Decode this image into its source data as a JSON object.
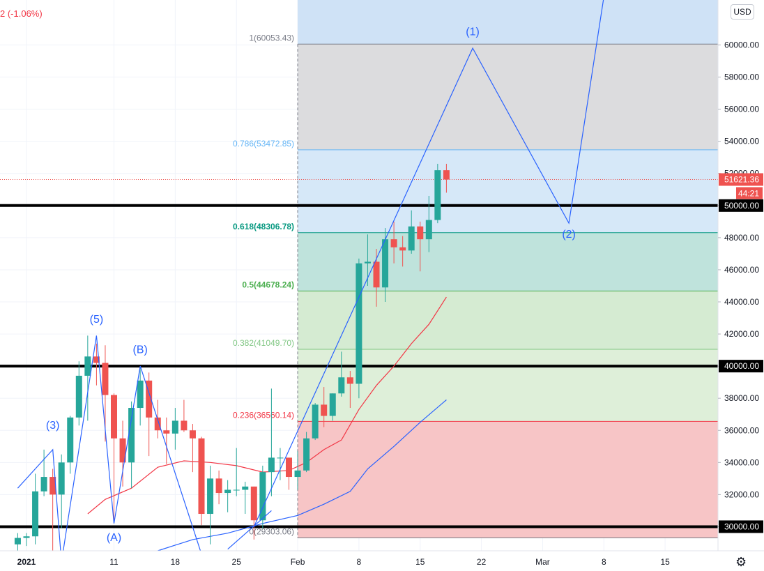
{
  "header": {
    "change_text": "2 (-1.06%)",
    "currency_label": "USD"
  },
  "colors": {
    "up": "#26a69a",
    "down": "#ef5350",
    "wave": "#2962ff",
    "ma_fast": "#f23645",
    "ma_slow": "#2962ff"
  },
  "icons": {
    "settings": "gear-icon"
  },
  "chart_data": {
    "type": "candlestick",
    "title": "",
    "ylim": [
      28500,
      62800
    ],
    "y_ticks": [
      "30000.00",
      "32000.00",
      "34000.00",
      "36000.00",
      "38000.00",
      "40000.00",
      "42000.00",
      "44000.00",
      "46000.00",
      "48000.00",
      "50000.00",
      "52000.00",
      "54000.00",
      "56000.00",
      "58000.00",
      "60000.00"
    ],
    "x_ticks": [
      {
        "label": "2021",
        "date": "2021-01-01"
      },
      {
        "label": "11",
        "date": "2021-01-11"
      },
      {
        "label": "18",
        "date": "2021-01-18"
      },
      {
        "label": "25",
        "date": "2021-01-25"
      },
      {
        "label": "Feb",
        "date": "2021-02-01"
      },
      {
        "label": "8",
        "date": "2021-02-08"
      },
      {
        "label": "15",
        "date": "2021-02-15"
      },
      {
        "label": "22",
        "date": "2021-02-22"
      },
      {
        "label": "Mar",
        "date": "2021-03-01"
      },
      {
        "label": "8",
        "date": "2021-03-08"
      },
      {
        "label": "15",
        "date": "2021-03-15"
      }
    ],
    "candles": [
      {
        "date": "2020-12-31",
        "open": 28900,
        "high": 29600,
        "low": 28200,
        "close": 29300
      },
      {
        "date": "2021-01-01",
        "open": 29300,
        "high": 29600,
        "low": 28800,
        "close": 29400
      },
      {
        "date": "2021-01-02",
        "open": 29400,
        "high": 33300,
        "low": 28900,
        "close": 32200
      },
      {
        "date": "2021-01-03",
        "open": 32200,
        "high": 34800,
        "low": 31900,
        "close": 33100
      },
      {
        "date": "2021-01-04",
        "open": 33100,
        "high": 33600,
        "low": 27700,
        "close": 32000
      },
      {
        "date": "2021-01-05",
        "open": 32000,
        "high": 34500,
        "low": 29900,
        "close": 34000
      },
      {
        "date": "2021-01-06",
        "open": 34000,
        "high": 36900,
        "low": 33300,
        "close": 36800
      },
      {
        "date": "2021-01-07",
        "open": 36800,
        "high": 40300,
        "low": 36300,
        "close": 39400
      },
      {
        "date": "2021-01-08",
        "open": 39400,
        "high": 41900,
        "low": 36600,
        "close": 40600
      },
      {
        "date": "2021-01-09",
        "open": 40600,
        "high": 41400,
        "low": 38800,
        "close": 40200
      },
      {
        "date": "2021-01-10",
        "open": 40200,
        "high": 41300,
        "low": 35300,
        "close": 38200
      },
      {
        "date": "2021-01-11",
        "open": 38200,
        "high": 38300,
        "low": 30400,
        "close": 35500
      },
      {
        "date": "2021-01-12",
        "open": 35500,
        "high": 36600,
        "low": 32500,
        "close": 34000
      },
      {
        "date": "2021-01-13",
        "open": 34000,
        "high": 37800,
        "low": 32400,
        "close": 37400
      },
      {
        "date": "2021-01-14",
        "open": 37400,
        "high": 40000,
        "low": 36300,
        "close": 39100
      },
      {
        "date": "2021-01-15",
        "open": 39100,
        "high": 39600,
        "low": 34400,
        "close": 36800
      },
      {
        "date": "2021-01-16",
        "open": 36800,
        "high": 37900,
        "low": 35500,
        "close": 36000
      },
      {
        "date": "2021-01-17",
        "open": 36000,
        "high": 36800,
        "low": 33900,
        "close": 35800
      },
      {
        "date": "2021-01-18",
        "open": 35800,
        "high": 37400,
        "low": 34800,
        "close": 36600
      },
      {
        "date": "2021-01-19",
        "open": 36600,
        "high": 37900,
        "low": 35900,
        "close": 36000
      },
      {
        "date": "2021-01-20",
        "open": 36000,
        "high": 36400,
        "low": 33400,
        "close": 35500
      },
      {
        "date": "2021-01-21",
        "open": 35500,
        "high": 35600,
        "low": 30100,
        "close": 30800
      },
      {
        "date": "2021-01-22",
        "open": 30800,
        "high": 33800,
        "low": 28900,
        "close": 33000
      },
      {
        "date": "2021-01-23",
        "open": 33000,
        "high": 33500,
        "low": 31400,
        "close": 32100
      },
      {
        "date": "2021-01-24",
        "open": 32100,
        "high": 32900,
        "low": 30900,
        "close": 32300
      },
      {
        "date": "2021-01-25",
        "open": 32300,
        "high": 34900,
        "low": 31900,
        "close": 32300
      },
      {
        "date": "2021-01-26",
        "open": 32300,
        "high": 32800,
        "low": 30800,
        "close": 32500
      },
      {
        "date": "2021-01-27",
        "open": 32500,
        "high": 32500,
        "low": 29200,
        "close": 30400
      },
      {
        "date": "2021-01-28",
        "open": 30400,
        "high": 33800,
        "low": 29900,
        "close": 33400
      },
      {
        "date": "2021-01-29",
        "open": 33400,
        "high": 38600,
        "low": 31900,
        "close": 34300
      },
      {
        "date": "2021-01-30",
        "open": 34300,
        "high": 34900,
        "low": 32900,
        "close": 34300
      },
      {
        "date": "2021-01-31",
        "open": 34300,
        "high": 34300,
        "low": 32300,
        "close": 33100
      },
      {
        "date": "2021-02-01",
        "open": 33100,
        "high": 34700,
        "low": 32300,
        "close": 33500
      },
      {
        "date": "2021-02-02",
        "open": 33500,
        "high": 35900,
        "low": 33400,
        "close": 35500
      },
      {
        "date": "2021-02-03",
        "open": 35500,
        "high": 37700,
        "low": 35400,
        "close": 37600
      },
      {
        "date": "2021-02-04",
        "open": 37600,
        "high": 38700,
        "low": 36200,
        "close": 36900
      },
      {
        "date": "2021-02-05",
        "open": 36900,
        "high": 38300,
        "low": 36600,
        "close": 38300
      },
      {
        "date": "2021-02-06",
        "open": 38300,
        "high": 40900,
        "low": 38100,
        "close": 39300
      },
      {
        "date": "2021-02-07",
        "open": 39300,
        "high": 39700,
        "low": 37400,
        "close": 38900
      },
      {
        "date": "2021-02-08",
        "open": 38900,
        "high": 46700,
        "low": 38000,
        "close": 46400
      },
      {
        "date": "2021-02-09",
        "open": 46400,
        "high": 48200,
        "low": 45000,
        "close": 46500
      },
      {
        "date": "2021-02-10",
        "open": 46500,
        "high": 47300,
        "low": 43700,
        "close": 44900
      },
      {
        "date": "2021-02-11",
        "open": 44900,
        "high": 48600,
        "low": 44000,
        "close": 47900
      },
      {
        "date": "2021-02-12",
        "open": 47900,
        "high": 49000,
        "low": 46400,
        "close": 47400
      },
      {
        "date": "2021-02-13",
        "open": 47400,
        "high": 48100,
        "low": 46200,
        "close": 47200
      },
      {
        "date": "2021-02-14",
        "open": 47200,
        "high": 49700,
        "low": 47000,
        "close": 48700
      },
      {
        "date": "2021-02-15",
        "open": 48700,
        "high": 49000,
        "low": 45900,
        "close": 47900
      },
      {
        "date": "2021-02-16",
        "open": 47900,
        "high": 50600,
        "low": 47100,
        "close": 49100
      },
      {
        "date": "2021-02-17",
        "open": 49100,
        "high": 52600,
        "low": 48900,
        "close": 52200
      },
      {
        "date": "2021-02-18",
        "open": 52200,
        "high": 52600,
        "low": 50800,
        "close": 51621
      }
    ],
    "last_price_label": "51621.36",
    "last_price": 51621.36,
    "countdown_label": "44:21",
    "horizontal_lines": [
      30000,
      40000,
      50000
    ],
    "horizontal_line_labels": [
      "30000.00",
      "40000.00",
      "50000.00"
    ],
    "fib": {
      "start_date": "2021-02-01",
      "levels": [
        {
          "ratio": 0,
          "price": 29303.06,
          "label": "0(29303.06)",
          "color": "#787b86"
        },
        {
          "ratio": 0.236,
          "price": 36560.14,
          "label": "0.236(36560.14)",
          "color": "#f23645"
        },
        {
          "ratio": 0.382,
          "price": 41049.7,
          "label": "0.382(41049.70)",
          "color": "#81c784"
        },
        {
          "ratio": 0.5,
          "price": 44678.24,
          "label": "0.5(44678.24)",
          "color": "#4caf50"
        },
        {
          "ratio": 0.618,
          "price": 48306.78,
          "label": "0.618(48306.78)",
          "color": "#089981"
        },
        {
          "ratio": 0.786,
          "price": 53472.85,
          "label": "0.786(53472.85)",
          "color": "#64b5f6"
        },
        {
          "ratio": 1,
          "price": 60053.43,
          "label": "1(60053.43)",
          "color": "#787b86"
        }
      ],
      "zones": [
        {
          "from": 29303.06,
          "to": 36560.14,
          "color": "#f7c5c6"
        },
        {
          "from": 36560.14,
          "to": 41049.7,
          "color": "#deefd9"
        },
        {
          "from": 41049.7,
          "to": 44678.24,
          "color": "#d5ebd2"
        },
        {
          "from": 44678.24,
          "to": 48306.78,
          "color": "#bfe3dc"
        },
        {
          "from": 48306.78,
          "to": 53472.85,
          "color": "#d6e8f8"
        },
        {
          "from": 53472.85,
          "to": 60053.43,
          "color": "#dcdcde"
        },
        {
          "from": 60053.43,
          "to": 62800,
          "color": "#cfe2f6"
        }
      ]
    },
    "waves": {
      "path_a": [
        {
          "date": "2020-12-31",
          "price": 32400
        },
        {
          "date": "2021-01-04",
          "price": 34800
        },
        {
          "date": "2021-01-05",
          "price": 27800
        },
        {
          "date": "2021-01-09",
          "price": 41900
        },
        {
          "date": "2021-01-11",
          "price": 30200
        },
        {
          "date": "2021-01-14",
          "price": 40000
        },
        {
          "date": "2021-01-21",
          "price": 28300
        }
      ],
      "path_b": [
        {
          "date": "2021-01-27",
          "price": 30000
        },
        {
          "date": "2021-02-21",
          "price": 59800
        },
        {
          "date": "2021-03-04",
          "price": 48900
        },
        {
          "date": "2021-03-08",
          "price": 63000
        }
      ],
      "path_c": [
        {
          "date": "2021-01-24",
          "price": 28600
        },
        {
          "date": "2021-01-29",
          "price": 31000
        }
      ],
      "labels": [
        {
          "text": "(3)",
          "date": "2021-01-04",
          "price": 36100
        },
        {
          "text": "(5)",
          "date": "2021-01-09",
          "price": 42700
        },
        {
          "text": "(A)",
          "date": "2021-01-11",
          "price": 29100
        },
        {
          "text": "(B)",
          "date": "2021-01-14",
          "price": 40800
        },
        {
          "text": "(1)",
          "date": "2021-02-21",
          "price": 60600
        },
        {
          "text": "(2)",
          "date": "2021-03-04",
          "price": 48000
        }
      ]
    },
    "moving_averages": [
      {
        "color": "#f23645",
        "points": [
          {
            "date": "2021-01-08",
            "price": 30800
          },
          {
            "date": "2021-01-10",
            "price": 31700
          },
          {
            "date": "2021-01-13",
            "price": 32400
          },
          {
            "date": "2021-01-16",
            "price": 33700
          },
          {
            "date": "2021-01-19",
            "price": 34100
          },
          {
            "date": "2021-01-22",
            "price": 34000
          },
          {
            "date": "2021-01-25",
            "price": 33800
          },
          {
            "date": "2021-01-28",
            "price": 33400
          },
          {
            "date": "2021-01-31",
            "price": 33500
          },
          {
            "date": "2021-02-02",
            "price": 34000
          },
          {
            "date": "2021-02-04",
            "price": 34800
          },
          {
            "date": "2021-02-06",
            "price": 35400
          },
          {
            "date": "2021-02-08",
            "price": 37300
          },
          {
            "date": "2021-02-10",
            "price": 38800
          },
          {
            "date": "2021-02-12",
            "price": 40000
          },
          {
            "date": "2021-02-14",
            "price": 41400
          },
          {
            "date": "2021-02-16",
            "price": 42600
          },
          {
            "date": "2021-02-18",
            "price": 44300
          }
        ]
      },
      {
        "color": "#2962ff",
        "points": [
          {
            "date": "2021-01-16",
            "price": 28500
          },
          {
            "date": "2021-01-20",
            "price": 29200
          },
          {
            "date": "2021-01-24",
            "price": 29600
          },
          {
            "date": "2021-01-28",
            "price": 30200
          },
          {
            "date": "2021-02-01",
            "price": 30700
          },
          {
            "date": "2021-02-04",
            "price": 31400
          },
          {
            "date": "2021-02-07",
            "price": 32200
          },
          {
            "date": "2021-02-09",
            "price": 33600
          },
          {
            "date": "2021-02-12",
            "price": 35000
          },
          {
            "date": "2021-02-15",
            "price": 36500
          },
          {
            "date": "2021-02-18",
            "price": 37900
          }
        ]
      }
    ]
  }
}
